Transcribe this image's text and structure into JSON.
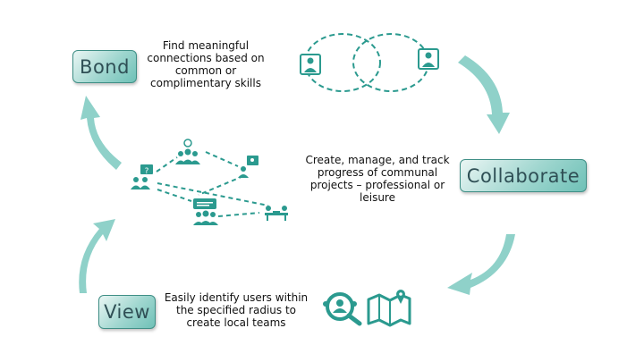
{
  "stages": {
    "bond": {
      "label": "Bond",
      "description": "Find meaningful connections based on common or complimentary skills"
    },
    "collaborate": {
      "label": "Collaborate",
      "description": "Create, manage, and track progress of communal projects – professional or leisure"
    },
    "view": {
      "label": "View",
      "description": "Easily identify users within the specified radius to create local teams"
    }
  },
  "colors": {
    "accent": "#2b9a8f",
    "arrow": "#8fd1c9",
    "box_light": "#eaf6f4",
    "box_dark": "#6fc1b7",
    "text": "#111111"
  },
  "icons": [
    "person-card-icon",
    "people-group-icon",
    "question-user-icon",
    "idea-group-icon",
    "chat-group-icon",
    "meeting-icon",
    "user-search-icon",
    "map-pin-icon"
  ]
}
